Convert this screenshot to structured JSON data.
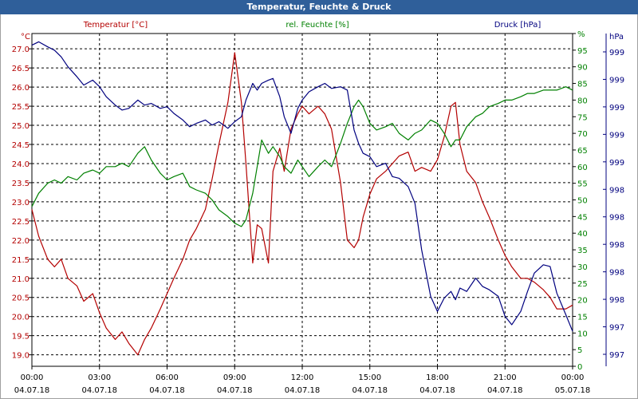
{
  "window": {
    "title": "Temperatur, Feuchte & Druck"
  },
  "colors": {
    "temperature": "#b40000",
    "humidity": "#008000",
    "pressure": "#00007f",
    "grid": "#000000",
    "axis_text": "#000000"
  },
  "chart_data": {
    "type": "line",
    "title": "Temperatur, Feuchte & Druck",
    "grid": true,
    "x_ticks": [
      {
        "time": "00:00",
        "date": "04.07.18"
      },
      {
        "time": "03:00",
        "date": "04.07.18"
      },
      {
        "time": "06:00",
        "date": "04.07.18"
      },
      {
        "time": "09:00",
        "date": "04.07.18"
      },
      {
        "time": "12:00",
        "date": "04.07.18"
      },
      {
        "time": "15:00",
        "date": "04.07.18"
      },
      {
        "time": "18:00",
        "date": "04.07.18"
      },
      {
        "time": "21:00",
        "date": "04.07.18"
      },
      {
        "time": "00:00",
        "date": "05.07.18"
      }
    ],
    "axes": {
      "temperature": {
        "label": "Temperatur [°C]",
        "unit": "°C",
        "range": [
          18.7,
          27.4
        ],
        "ticks": [
          "19.0",
          "19.5",
          "20.0",
          "20.5",
          "21.0",
          "21.5",
          "22.0",
          "22.5",
          "23.0",
          "23.5",
          "24.0",
          "24.5",
          "25.0",
          "25.5",
          "26.0",
          "26.5",
          "27.0"
        ]
      },
      "humidity": {
        "label": "rel. Feuchte [%]",
        "unit": "%",
        "range": [
          0,
          100
        ],
        "ticks": [
          "0",
          "5",
          "10",
          "15",
          "20",
          "25",
          "30",
          "35",
          "40",
          "45",
          "50",
          "55",
          "60",
          "65",
          "70",
          "75",
          "80",
          "85",
          "90",
          "95",
          "%"
        ]
      },
      "pressure": {
        "label": "Druck [hPa]",
        "unit": "hPa",
        "range": [
          997,
          999
        ],
        "ticks": [
          "997",
          "997",
          "998",
          "998",
          "998",
          "998",
          "998",
          "999",
          "999",
          "999",
          "999",
          "999"
        ]
      }
    },
    "series": [
      {
        "name": "Temperatur [°C]",
        "axis": "temperature",
        "x": [
          0,
          0.3,
          0.7,
          1,
          1.3,
          1.6,
          2,
          2.3,
          2.7,
          3,
          3.3,
          3.7,
          4,
          4.3,
          4.7,
          5,
          5.3,
          5.7,
          6,
          6.3,
          6.7,
          7,
          7.3,
          7.7,
          8,
          8.3,
          8.7,
          9,
          9.3,
          9.5,
          9.8,
          10,
          10.2,
          10.5,
          10.7,
          11,
          11.2,
          11.5,
          11.8,
          12,
          12.3,
          12.7,
          13,
          13.3,
          13.7,
          14,
          14.3,
          14.5,
          14.7,
          15,
          15.3,
          15.7,
          16,
          16.3,
          16.7,
          17,
          17.3,
          17.7,
          18,
          18.3,
          18.6,
          18.8,
          19,
          19.3,
          19.7,
          20,
          20.3,
          20.7,
          21,
          21.3,
          21.7,
          22,
          22.3,
          22.7,
          23,
          23.3,
          23.7,
          24
        ],
        "values": [
          22.8,
          22.1,
          21.5,
          21.3,
          21.5,
          21.0,
          20.8,
          20.4,
          20.6,
          20.1,
          19.7,
          19.4,
          19.6,
          19.3,
          19.0,
          19.4,
          19.7,
          20.2,
          20.6,
          21.0,
          21.5,
          22.0,
          22.3,
          22.8,
          23.6,
          24.5,
          25.6,
          26.9,
          25.6,
          24.0,
          21.4,
          22.4,
          22.3,
          21.4,
          23.8,
          24.4,
          23.8,
          24.9,
          25.3,
          25.5,
          25.3,
          25.5,
          25.3,
          24.9,
          23.5,
          22.0,
          21.8,
          22.0,
          22.6,
          23.2,
          23.6,
          23.8,
          24.0,
          24.2,
          24.3,
          23.8,
          23.9,
          23.8,
          24.1,
          24.7,
          25.5,
          25.6,
          24.5,
          23.8,
          23.5,
          23.0,
          22.6,
          22.0,
          21.6,
          21.3,
          21.0,
          21.0,
          20.9,
          20.7,
          20.5,
          20.2,
          20.2,
          20.3
        ]
      },
      {
        "name": "rel. Feuchte [%]",
        "axis": "humidity",
        "x": [
          0,
          0.3,
          0.7,
          1,
          1.3,
          1.6,
          2,
          2.3,
          2.7,
          3,
          3.3,
          3.7,
          4,
          4.3,
          4.7,
          5,
          5.3,
          5.7,
          6,
          6.3,
          6.7,
          7,
          7.3,
          7.7,
          8,
          8.3,
          8.7,
          9,
          9.3,
          9.5,
          9.8,
          10,
          10.2,
          10.5,
          10.7,
          11,
          11.2,
          11.5,
          11.8,
          12,
          12.3,
          12.7,
          13,
          13.3,
          13.7,
          14,
          14.3,
          14.5,
          14.7,
          15,
          15.3,
          15.7,
          16,
          16.3,
          16.7,
          17,
          17.3,
          17.7,
          18,
          18.3,
          18.6,
          18.8,
          19,
          19.3,
          19.7,
          20,
          20.3,
          20.7,
          21,
          21.3,
          21.7,
          22,
          22.3,
          22.7,
          23,
          23.3,
          23.7,
          24
        ],
        "values": [
          48,
          52,
          55,
          56,
          55,
          57,
          56,
          58,
          59,
          58,
          60,
          60,
          61,
          60,
          64,
          66,
          62,
          58,
          56,
          57,
          58,
          54,
          53,
          52,
          50,
          47,
          45,
          43,
          42,
          44,
          52,
          60,
          68,
          64,
          66,
          63,
          60,
          58,
          62,
          60,
          57,
          60,
          62,
          60,
          67,
          73,
          78,
          80,
          78,
          73,
          71,
          72,
          73,
          70,
          68,
          70,
          71,
          74,
          73,
          70,
          66,
          68,
          68,
          72,
          75,
          76,
          78,
          79,
          80,
          80,
          81,
          82,
          82,
          83,
          83,
          83,
          84,
          83
        ]
      },
      {
        "name": "Druck [hPa]",
        "axis": "pressure",
        "x": [
          0,
          0.3,
          0.7,
          1,
          1.3,
          1.6,
          2,
          2.3,
          2.7,
          3,
          3.3,
          3.7,
          4,
          4.3,
          4.7,
          5,
          5.3,
          5.7,
          6,
          6.3,
          6.7,
          7,
          7.3,
          7.7,
          8,
          8.3,
          8.7,
          9,
          9.3,
          9.5,
          9.8,
          10,
          10.2,
          10.5,
          10.7,
          11,
          11.2,
          11.5,
          11.8,
          12,
          12.3,
          12.7,
          13,
          13.3,
          13.7,
          14,
          14.3,
          14.5,
          14.7,
          15,
          15.3,
          15.7,
          16,
          16.3,
          16.7,
          17,
          17.3,
          17.7,
          18,
          18.3,
          18.6,
          18.8,
          19,
          19.3,
          19.7,
          20,
          20.3,
          20.7,
          21,
          21.3,
          21.7,
          22,
          22.3,
          22.7,
          23,
          23.3,
          23.7,
          24
        ],
        "values": [
          998.93,
          998.95,
          998.92,
          998.9,
          998.86,
          998.8,
          998.74,
          998.69,
          998.72,
          998.68,
          998.62,
          998.57,
          998.54,
          998.55,
          998.6,
          998.57,
          998.58,
          998.55,
          998.56,
          998.52,
          998.48,
          998.44,
          998.46,
          998.48,
          998.45,
          998.47,
          998.43,
          998.47,
          998.5,
          998.6,
          998.7,
          998.66,
          998.7,
          998.72,
          998.73,
          998.62,
          998.5,
          998.4,
          998.55,
          998.6,
          998.65,
          998.68,
          998.7,
          998.67,
          998.68,
          998.66,
          998.42,
          998.34,
          998.28,
          998.26,
          998.2,
          998.22,
          998.14,
          998.13,
          998.08,
          997.98,
          997.7,
          997.42,
          997.33,
          997.41,
          997.45,
          997.4,
          997.47,
          997.45,
          997.53,
          997.48,
          997.46,
          997.42,
          997.3,
          997.25,
          997.33,
          997.45,
          997.56,
          997.61,
          997.6,
          997.44,
          997.31,
          997.21
        ]
      }
    ]
  }
}
